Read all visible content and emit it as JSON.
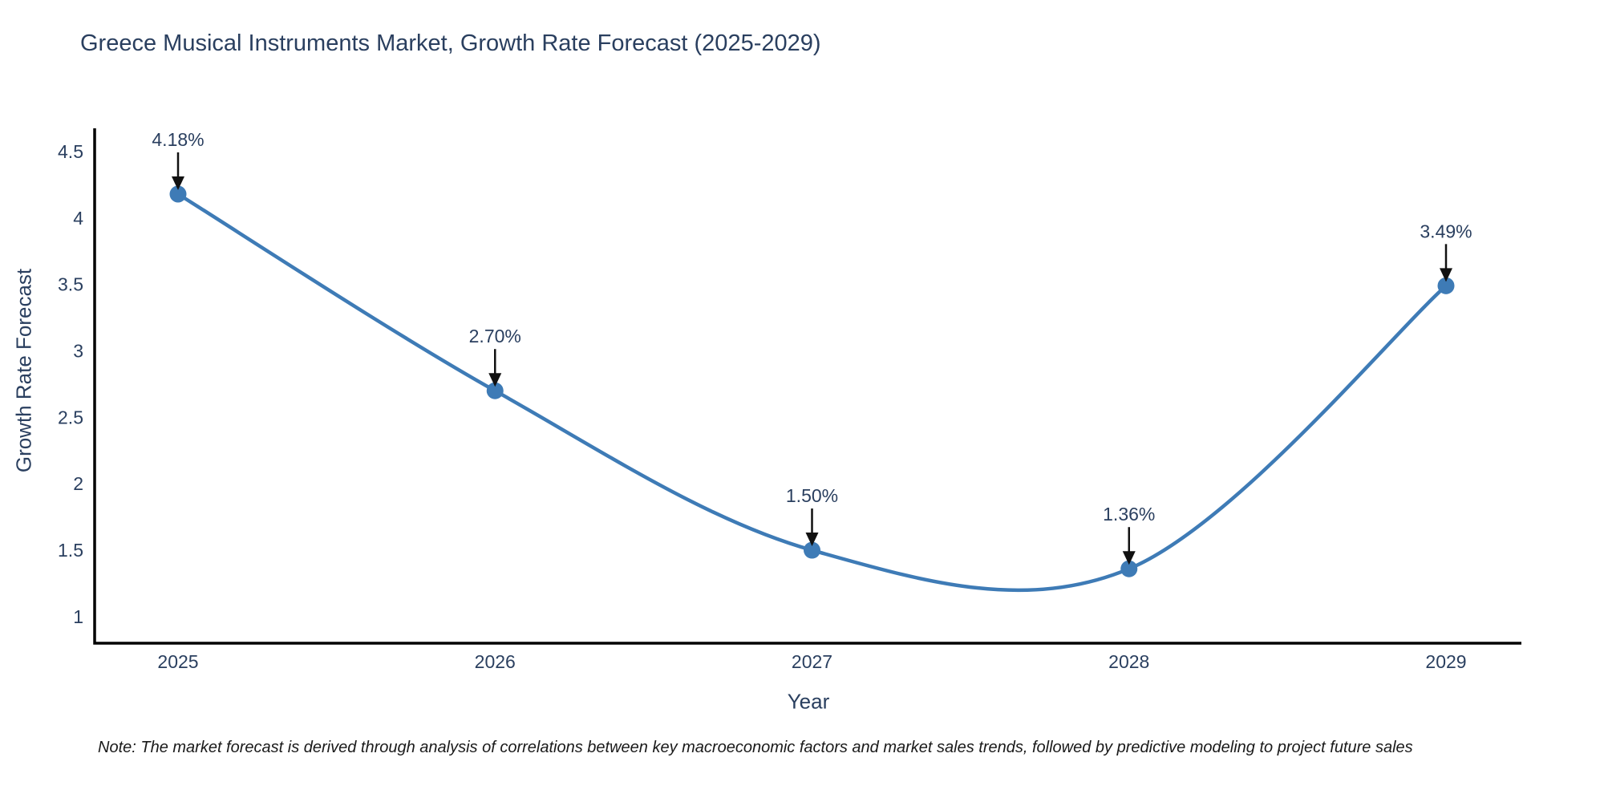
{
  "title": "Greece Musical Instruments Market, Growth Rate Forecast (2025-2029)",
  "note": "Note: The market forecast is derived through analysis of correlations between key macroeconomic factors and market sales trends, followed by predictive modeling to project future sales",
  "colors": {
    "line": "#3e7bb6",
    "marker": "#3e7bb6",
    "axis": "#000000",
    "text": "#2a3f5f",
    "arrow": "#111111",
    "note": "#1a1a1a"
  },
  "chart_data": {
    "type": "line",
    "line_shape": "spline",
    "title": "Greece Musical Instruments Market, Growth Rate Forecast (2025-2029)",
    "xlabel": "Year",
    "ylabel": "Growth Rate Forecast",
    "categories": [
      "2025",
      "2026",
      "2027",
      "2028",
      "2029"
    ],
    "values": [
      4.18,
      2.7,
      1.5,
      1.36,
      3.49
    ],
    "point_labels": [
      "4.18%",
      "2.70%",
      "1.50%",
      "1.36%",
      "3.49%"
    ],
    "yticks": [
      1,
      1.5,
      2,
      2.5,
      3,
      3.5,
      4,
      4.5
    ],
    "ylim": [
      0.8,
      4.675
    ],
    "grid": false,
    "legend": "none",
    "annotation_style": "arrow-down"
  }
}
